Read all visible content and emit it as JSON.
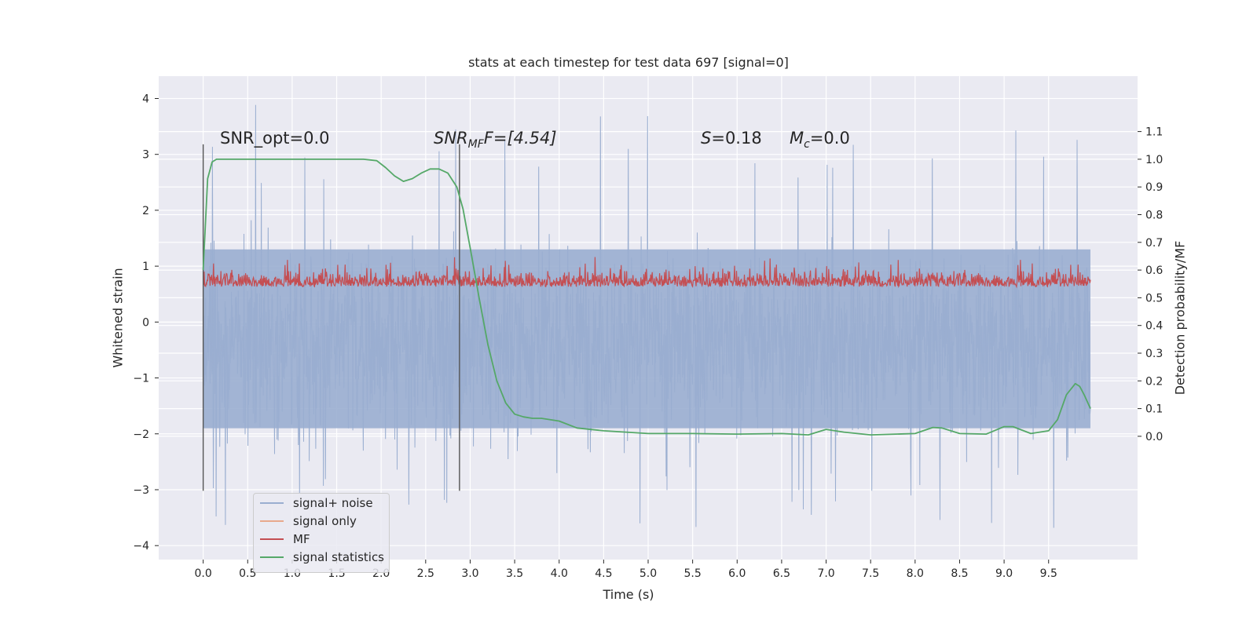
{
  "chart_data": {
    "type": "line",
    "title": "stats at each timestep for test data 697 [signal=0]",
    "xlabel": "Time (s)",
    "ylabel": "Whitened strain",
    "ylabel_right": "Detection probability/MF",
    "xlim": [
      -0.5,
      10.5
    ],
    "ylim": [
      -4.25,
      4.4
    ],
    "ylim_right": [
      -0.445,
      1.3
    ],
    "x_ticks": [
      "0.0",
      "0.5",
      "1.0",
      "1.5",
      "2.0",
      "2.5",
      "3.0",
      "3.5",
      "4.0",
      "4.5",
      "5.0",
      "5.5",
      "6.0",
      "6.5",
      "7.0",
      "7.5",
      "8.0",
      "8.5",
      "9.0",
      "9.5"
    ],
    "y_ticks": [
      "4",
      "3",
      "2",
      "1",
      "0",
      "−1",
      "−2",
      "−3",
      "−4"
    ],
    "y_ticks_right": [
      "1.1",
      "1.0",
      "0.9",
      "0.8",
      "0.7",
      "0.6",
      "0.5",
      "0.4",
      "0.3",
      "0.2",
      "0.1",
      "0.0"
    ],
    "vlines": [
      0.0,
      2.88
    ],
    "annotations": {
      "snr_opt": "SNR_opt=0.0",
      "snr_mf_sym": "SNR",
      "snr_mf_sub": "MF",
      "snr_mf_rest": "F=[4.54]",
      "s_sym": "S",
      "s_val": "=0.18",
      "mc_sym": "M",
      "mc_sub": "c",
      "mc_val": "=0.0"
    },
    "series": [
      {
        "name": "signal+ noise",
        "color": "#9aaed0",
        "axis": "left",
        "description_range": [
          -3.7,
          4.0
        ]
      },
      {
        "name": "signal only",
        "color": "#e8a98c",
        "axis": "left",
        "values_constant": 0
      },
      {
        "name": "MF",
        "color": "#c44e52",
        "axis": "right",
        "description_range": [
          0.5,
          0.66
        ]
      },
      {
        "name": "signal statistics",
        "color": "#55a868",
        "axis": "right",
        "x": [
          0.0,
          0.05,
          0.1,
          0.15,
          0.2,
          0.3,
          0.5,
          1.0,
          1.5,
          1.8,
          1.95,
          2.05,
          2.15,
          2.25,
          2.35,
          2.45,
          2.55,
          2.65,
          2.75,
          2.85,
          2.92,
          3.0,
          3.1,
          3.2,
          3.3,
          3.4,
          3.5,
          3.6,
          3.7,
          3.8,
          4.0,
          4.2,
          4.5,
          5.0,
          5.5,
          6.0,
          6.5,
          6.8,
          7.0,
          7.2,
          7.5,
          8.0,
          8.2,
          8.3,
          8.5,
          8.8,
          9.0,
          9.1,
          9.3,
          9.5,
          9.6,
          9.7,
          9.8,
          9.85,
          9.9,
          9.97
        ],
        "values": [
          0.6,
          0.93,
          0.99,
          1.0,
          1.0,
          1.0,
          1.0,
          1.0,
          1.0,
          1.0,
          0.995,
          0.97,
          0.94,
          0.92,
          0.93,
          0.95,
          0.965,
          0.965,
          0.95,
          0.9,
          0.82,
          0.68,
          0.5,
          0.33,
          0.2,
          0.12,
          0.08,
          0.07,
          0.065,
          0.065,
          0.055,
          0.03,
          0.02,
          0.01,
          0.01,
          0.008,
          0.01,
          0.005,
          0.025,
          0.015,
          0.005,
          0.01,
          0.032,
          0.03,
          0.01,
          0.008,
          0.035,
          0.035,
          0.01,
          0.02,
          0.06,
          0.15,
          0.19,
          0.18,
          0.15,
          0.1
        ]
      }
    ],
    "legend": "lower-left",
    "grid": true
  }
}
